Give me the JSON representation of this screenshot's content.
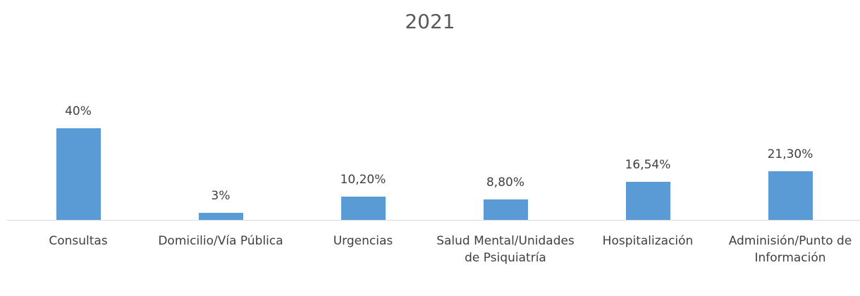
{
  "chart_data": {
    "type": "bar",
    "title": "2021",
    "categories": [
      "Consultas",
      "Domicilio/Vía Pública",
      "Urgencias",
      "Salud Mental/Unidades de Psiquiatría",
      "Hospitalización",
      "Adminisión/Punto de Información"
    ],
    "values": [
      40,
      3,
      10.2,
      8.8,
      16.54,
      21.3
    ],
    "value_labels": [
      "40%",
      "3%",
      "10,20%",
      "8,80%",
      "16,54%",
      "21,30%"
    ],
    "color": "#5b9bd5"
  }
}
